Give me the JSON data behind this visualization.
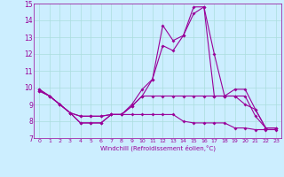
{
  "xlabel": "Windchill (Refroidissement éolien,°C)",
  "x": [
    0,
    1,
    2,
    3,
    4,
    5,
    6,
    7,
    8,
    9,
    10,
    11,
    12,
    13,
    14,
    15,
    16,
    17,
    18,
    19,
    20,
    21,
    22,
    23
  ],
  "line1": [
    9.9,
    9.5,
    9.0,
    8.5,
    7.9,
    7.9,
    7.9,
    8.4,
    8.4,
    9.0,
    9.9,
    10.5,
    13.7,
    12.8,
    13.1,
    14.8,
    14.8,
    12.0,
    9.5,
    9.9,
    9.9,
    8.7,
    7.6,
    7.6
  ],
  "line2": [
    9.9,
    9.5,
    9.0,
    8.5,
    7.9,
    7.9,
    7.9,
    8.4,
    8.4,
    8.9,
    9.5,
    10.5,
    12.5,
    12.2,
    13.1,
    14.4,
    14.8,
    9.5,
    9.5,
    9.5,
    9.5,
    8.3,
    7.6,
    7.6
  ],
  "line3": [
    9.8,
    9.5,
    9.0,
    8.5,
    8.3,
    8.3,
    8.3,
    8.4,
    8.4,
    8.9,
    9.5,
    9.5,
    9.5,
    9.5,
    9.5,
    9.5,
    9.5,
    9.5,
    9.5,
    9.5,
    9.0,
    8.7,
    7.6,
    7.6
  ],
  "line4": [
    9.8,
    9.5,
    9.0,
    8.5,
    8.3,
    8.3,
    8.3,
    8.4,
    8.4,
    8.4,
    8.4,
    8.4,
    8.4,
    8.4,
    8.0,
    7.9,
    7.9,
    7.9,
    7.9,
    7.6,
    7.6,
    7.5,
    7.5,
    7.5
  ],
  "line_color": "#990099",
  "bg_color": "#cceeff",
  "grid_color": "#aadddd",
  "ylim": [
    7,
    15
  ],
  "yticks": [
    7,
    8,
    9,
    10,
    11,
    12,
    13,
    14,
    15
  ]
}
